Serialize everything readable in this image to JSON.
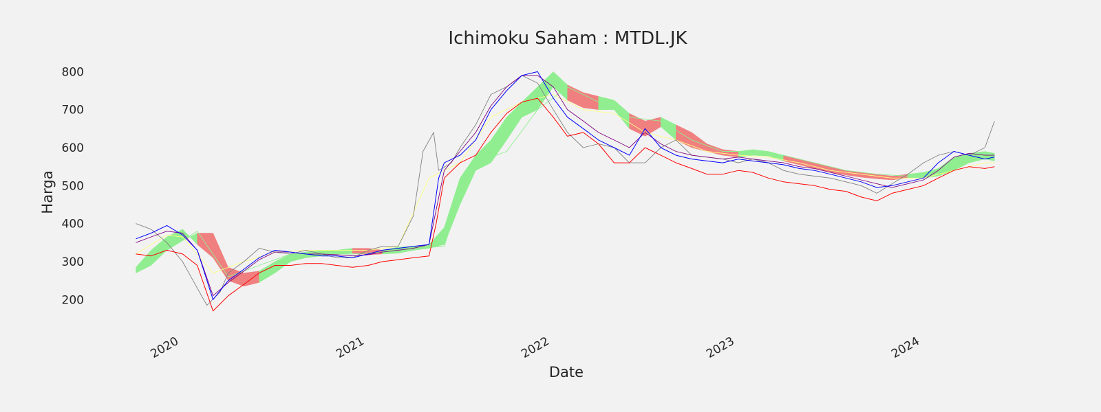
{
  "chart_data": {
    "type": "line",
    "title": "Ichimoku Saham : MTDL.JK",
    "xlabel": "Date",
    "ylabel": "Harga",
    "x_ticks": [
      "2020",
      "2021",
      "2022",
      "2023",
      "2024"
    ],
    "x_tick_dates": [
      "2020-01-01",
      "2021-01-01",
      "2022-01-01",
      "2023-01-01",
      "2024-01-01"
    ],
    "xlim": [
      "2019-10-15",
      "2024-07-10"
    ],
    "y_ticks": [
      200,
      300,
      400,
      500,
      600,
      700,
      800
    ],
    "ylim": [
      130,
      835
    ],
    "grid": false,
    "legend": "none",
    "colors": {
      "background": "#f2f2f2",
      "close": "#808080",
      "tenkan": "#0000ff",
      "kijun": "#800080",
      "chikou": "#ff0000",
      "senkou_a": "#90ee90",
      "senkou_b": "#ffff80",
      "cloud_bull": "#90ee90",
      "cloud_bear": "#f08080"
    },
    "series": [
      {
        "key": "close",
        "x": [
          "2019-11-01",
          "2019-12-01",
          "2020-01-01",
          "2020-02-01",
          "2020-03-01",
          "2020-03-20",
          "2020-04-15",
          "2020-05-01",
          "2020-06-01",
          "2020-07-01",
          "2020-08-01",
          "2020-09-01",
          "2020-10-01",
          "2020-11-01",
          "2020-12-01",
          "2021-01-01",
          "2021-02-01",
          "2021-03-01",
          "2021-04-01",
          "2021-05-01",
          "2021-05-20",
          "2021-06-10",
          "2021-06-20",
          "2021-07-15",
          "2021-08-01",
          "2021-09-01",
          "2021-10-01",
          "2021-11-01",
          "2021-12-01",
          "2022-01-01",
          "2022-02-01",
          "2022-03-01",
          "2022-04-01",
          "2022-05-01",
          "2022-06-01",
          "2022-07-01",
          "2022-08-01",
          "2022-09-01",
          "2022-10-01",
          "2022-11-01",
          "2022-12-01",
          "2023-01-01",
          "2023-02-01",
          "2023-03-01",
          "2023-04-01",
          "2023-05-01",
          "2023-06-01",
          "2023-07-01",
          "2023-08-01",
          "2023-09-01",
          "2023-10-01",
          "2023-11-01",
          "2023-12-01",
          "2024-01-01",
          "2024-02-01",
          "2024-03-01",
          "2024-04-01",
          "2024-05-01",
          "2024-06-01",
          "2024-06-20"
        ],
        "values": [
          400,
          385,
          350,
          300,
          230,
          185,
          220,
          270,
          300,
          335,
          325,
          320,
          330,
          320,
          310,
          310,
          330,
          340,
          340,
          420,
          590,
          640,
          540,
          560,
          600,
          660,
          740,
          760,
          790,
          770,
          700,
          640,
          600,
          610,
          600,
          560,
          560,
          600,
          620,
          580,
          575,
          570,
          560,
          570,
          560,
          540,
          530,
          525,
          520,
          510,
          500,
          480,
          505,
          530,
          560,
          580,
          590,
          580,
          600,
          670
        ]
      },
      {
        "key": "tenkan",
        "x": [
          "2019-11-01",
          "2019-12-01",
          "2020-01-01",
          "2020-02-01",
          "2020-03-01",
          "2020-04-01",
          "2020-05-01",
          "2020-06-01",
          "2020-07-01",
          "2020-08-01",
          "2020-09-01",
          "2020-10-01",
          "2020-11-01",
          "2020-12-01",
          "2021-01-01",
          "2021-02-01",
          "2021-03-01",
          "2021-04-01",
          "2021-05-01",
          "2021-06-01",
          "2021-06-20",
          "2021-07-01",
          "2021-08-01",
          "2021-09-01",
          "2021-10-01",
          "2021-11-01",
          "2021-12-01",
          "2022-01-01",
          "2022-02-01",
          "2022-03-01",
          "2022-04-01",
          "2022-05-01",
          "2022-06-01",
          "2022-07-01",
          "2022-08-01",
          "2022-09-01",
          "2022-10-01",
          "2022-11-01",
          "2022-12-01",
          "2023-01-01",
          "2023-02-01",
          "2023-03-01",
          "2023-04-01",
          "2023-05-01",
          "2023-06-01",
          "2023-07-01",
          "2023-08-01",
          "2023-09-01",
          "2023-10-01",
          "2023-11-01",
          "2023-12-01",
          "2024-01-01",
          "2024-02-01",
          "2024-03-01",
          "2024-04-01",
          "2024-05-01",
          "2024-06-01",
          "2024-06-20"
        ],
        "values": [
          360,
          375,
          395,
          370,
          330,
          200,
          250,
          280,
          310,
          330,
          325,
          320,
          315,
          315,
          310,
          320,
          330,
          335,
          340,
          345,
          520,
          560,
          580,
          620,
          700,
          750,
          790,
          800,
          730,
          680,
          650,
          620,
          600,
          580,
          650,
          600,
          580,
          570,
          565,
          560,
          570,
          565,
          560,
          555,
          545,
          540,
          530,
          520,
          510,
          495,
          500,
          510,
          520,
          560,
          590,
          580,
          570,
          575
        ]
      },
      {
        "key": "kijun",
        "x": [
          "2019-11-01",
          "2019-12-01",
          "2020-01-01",
          "2020-02-01",
          "2020-03-01",
          "2020-04-01",
          "2020-05-01",
          "2020-06-01",
          "2020-07-01",
          "2020-08-01",
          "2020-09-01",
          "2020-10-01",
          "2020-11-01",
          "2020-12-01",
          "2021-01-01",
          "2021-02-01",
          "2021-03-01",
          "2021-04-01",
          "2021-05-01",
          "2021-06-01",
          "2021-07-01",
          "2021-08-01",
          "2021-09-01",
          "2021-10-01",
          "2021-11-01",
          "2021-12-01",
          "2022-01-01",
          "2022-02-01",
          "2022-03-01",
          "2022-04-01",
          "2022-05-01",
          "2022-06-01",
          "2022-07-01",
          "2022-08-01",
          "2022-09-01",
          "2022-10-01",
          "2022-11-01",
          "2022-12-01",
          "2023-01-01",
          "2023-02-01",
          "2023-03-01",
          "2023-04-01",
          "2023-05-01",
          "2023-06-01",
          "2023-07-01",
          "2023-08-01",
          "2023-09-01",
          "2023-10-01",
          "2023-11-01",
          "2023-12-01",
          "2024-01-01",
          "2024-02-01",
          "2024-03-01",
          "2024-04-01",
          "2024-05-01",
          "2024-06-01",
          "2024-06-20"
        ],
        "values": [
          350,
          365,
          380,
          375,
          330,
          210,
          245,
          275,
          305,
          325,
          325,
          320,
          320,
          318,
          315,
          318,
          325,
          330,
          335,
          345,
          540,
          590,
          640,
          710,
          760,
          790,
          790,
          760,
          700,
          670,
          640,
          620,
          600,
          640,
          610,
          590,
          580,
          575,
          570,
          575,
          570,
          565,
          560,
          550,
          545,
          535,
          525,
          515,
          505,
          495,
          505,
          515,
          540,
          575,
          585,
          580,
          580
        ]
      },
      {
        "key": "chikou",
        "x": [
          "2019-11-01",
          "2019-12-01",
          "2020-01-01",
          "2020-02-01",
          "2020-03-01",
          "2020-04-01",
          "2020-05-01",
          "2020-06-01",
          "2020-07-01",
          "2020-08-01",
          "2020-09-01",
          "2020-10-01",
          "2020-11-01",
          "2020-12-01",
          "2021-01-01",
          "2021-02-01",
          "2021-03-01",
          "2021-04-01",
          "2021-05-01",
          "2021-06-01",
          "2021-06-15",
          "2021-07-01",
          "2021-08-01",
          "2021-09-01",
          "2021-10-01",
          "2021-11-01",
          "2021-12-01",
          "2022-01-01",
          "2022-02-01",
          "2022-03-01",
          "2022-04-01",
          "2022-05-01",
          "2022-06-01",
          "2022-07-01",
          "2022-08-01",
          "2022-09-01",
          "2022-10-01",
          "2022-11-01",
          "2022-12-01",
          "2023-01-01",
          "2023-02-01",
          "2023-03-01",
          "2023-04-01",
          "2023-05-01",
          "2023-06-01",
          "2023-07-01",
          "2023-08-01",
          "2023-09-01",
          "2023-10-01",
          "2023-11-01",
          "2023-12-01",
          "2024-01-01",
          "2024-02-01",
          "2024-03-01",
          "2024-04-01",
          "2024-05-01",
          "2024-06-01",
          "2024-06-20"
        ],
        "values": [
          320,
          315,
          330,
          320,
          290,
          170,
          210,
          240,
          270,
          290,
          290,
          295,
          295,
          290,
          285,
          290,
          300,
          305,
          310,
          315,
          400,
          520,
          560,
          580,
          640,
          690,
          720,
          730,
          680,
          630,
          640,
          610,
          560,
          560,
          600,
          580,
          560,
          545,
          530,
          530,
          540,
          535,
          520,
          510,
          505,
          500,
          490,
          485,
          470,
          460,
          480,
          490,
          500,
          520,
          540,
          550,
          545,
          550
        ]
      },
      {
        "key": "senkou_b",
        "x": [
          "2019-11-01",
          "2020-01-01",
          "2020-02-01",
          "2020-04-01",
          "2020-06-01",
          "2020-08-01",
          "2020-10-01",
          "2020-12-01",
          "2021-02-01",
          "2021-04-01",
          "2021-06-01",
          "2021-08-01",
          "2021-10-01",
          "2021-12-01",
          "2022-02-01",
          "2022-04-01",
          "2022-06-01",
          "2022-08-01",
          "2022-10-01",
          "2022-12-01",
          "2023-02-01",
          "2023-04-01",
          "2023-06-01",
          "2023-08-01",
          "2023-10-01",
          "2023-12-01",
          "2024-02-01",
          "2024-04-01",
          "2024-06-01",
          "2024-06-20"
        ],
        "values": [
          320,
          370,
          365,
          270,
          300,
          325,
          330,
          330,
          330,
          340,
          520,
          560,
          680,
          720,
          740,
          700,
          690,
          640,
          620,
          590,
          580,
          575,
          560,
          540,
          530,
          520,
          520,
          540,
          560,
          560
        ]
      },
      {
        "key": "senkou_a",
        "x": [
          "2019-11-01",
          "2020-01-01",
          "2020-03-01",
          "2020-05-01",
          "2020-07-01",
          "2020-09-01",
          "2020-11-01",
          "2021-01-01",
          "2021-03-01",
          "2021-05-01",
          "2021-07-01",
          "2021-08-01",
          "2021-09-01",
          "2021-11-01",
          "2022-01-01",
          "2022-03-01",
          "2022-05-01",
          "2022-07-01",
          "2022-09-01",
          "2022-11-01",
          "2023-01-01",
          "2023-03-01",
          "2023-05-01",
          "2023-07-01",
          "2023-09-01",
          "2023-11-01",
          "2024-01-01",
          "2024-03-01",
          "2024-05-01",
          "2024-06-20"
        ],
        "values": [
          280,
          330,
          380,
          260,
          290,
          320,
          320,
          320,
          325,
          335,
          340,
          470,
          560,
          590,
          700,
          760,
          720,
          680,
          670,
          620,
          590,
          590,
          580,
          560,
          540,
          530,
          525,
          540,
          580,
          580
        ]
      }
    ],
    "cloud": [
      {
        "x": "2019-11-01",
        "a": 270,
        "b": 285,
        "state": "bull"
      },
      {
        "x": "2019-12-01",
        "a": 290,
        "b": 330,
        "state": "bull"
      },
      {
        "x": "2020-01-01",
        "a": 330,
        "b": 365,
        "state": "bull"
      },
      {
        "x": "2020-02-01",
        "a": 355,
        "b": 385,
        "state": "bull"
      },
      {
        "x": "2020-03-01",
        "a": 375,
        "b": 345,
        "state": "bear"
      },
      {
        "x": "2020-04-01",
        "a": 375,
        "b": 310,
        "state": "bear"
      },
      {
        "x": "2020-05-01",
        "a": 285,
        "b": 250,
        "state": "bear"
      },
      {
        "x": "2020-06-01",
        "a": 270,
        "b": 235,
        "state": "bear"
      },
      {
        "x": "2020-07-01",
        "a": 275,
        "b": 245,
        "state": "bull"
      },
      {
        "x": "2020-08-01",
        "a": 300,
        "b": 270,
        "state": "bull"
      },
      {
        "x": "2020-09-01",
        "a": 320,
        "b": 300,
        "state": "bull"
      },
      {
        "x": "2020-10-01",
        "a": 325,
        "b": 310,
        "state": "bull"
      },
      {
        "x": "2020-11-01",
        "a": 330,
        "b": 315,
        "state": "bull"
      },
      {
        "x": "2020-12-01",
        "a": 330,
        "b": 320,
        "state": "bull"
      },
      {
        "x": "2021-01-01",
        "a": 335,
        "b": 322,
        "state": "bear"
      },
      {
        "x": "2021-02-01",
        "a": 335,
        "b": 318,
        "state": "bear"
      },
      {
        "x": "2021-03-01",
        "a": 330,
        "b": 320,
        "state": "bull"
      },
      {
        "x": "2021-04-01",
        "a": 338,
        "b": 322,
        "state": "bull"
      },
      {
        "x": "2021-05-01",
        "a": 340,
        "b": 330,
        "state": "bull"
      },
      {
        "x": "2021-06-01",
        "a": 345,
        "b": 335,
        "state": "bull"
      },
      {
        "x": "2021-07-01",
        "a": 390,
        "b": 345,
        "state": "bull"
      },
      {
        "x": "2021-08-01",
        "a": 520,
        "b": 450,
        "state": "bull"
      },
      {
        "x": "2021-09-01",
        "a": 580,
        "b": 540,
        "state": "bull"
      },
      {
        "x": "2021-10-01",
        "a": 620,
        "b": 560,
        "state": "bull"
      },
      {
        "x": "2021-11-01",
        "a": 680,
        "b": 620,
        "state": "bull"
      },
      {
        "x": "2021-12-01",
        "a": 720,
        "b": 680,
        "state": "bull"
      },
      {
        "x": "2022-01-01",
        "a": 760,
        "b": 700,
        "state": "bull"
      },
      {
        "x": "2022-02-01",
        "a": 800,
        "b": 760,
        "state": "bull"
      },
      {
        "x": "2022-03-01",
        "a": 765,
        "b": 725,
        "state": "bear"
      },
      {
        "x": "2022-04-01",
        "a": 745,
        "b": 705,
        "state": "bear"
      },
      {
        "x": "2022-05-01",
        "a": 735,
        "b": 700,
        "state": "bull"
      },
      {
        "x": "2022-06-01",
        "a": 725,
        "b": 700,
        "state": "bull"
      },
      {
        "x": "2022-07-01",
        "a": 690,
        "b": 650,
        "state": "bear"
      },
      {
        "x": "2022-08-01",
        "a": 670,
        "b": 630,
        "state": "bear"
      },
      {
        "x": "2022-09-01",
        "a": 680,
        "b": 655,
        "state": "bull"
      },
      {
        "x": "2022-10-01",
        "a": 660,
        "b": 620,
        "state": "bear"
      },
      {
        "x": "2022-11-01",
        "a": 640,
        "b": 600,
        "state": "bear"
      },
      {
        "x": "2022-12-01",
        "a": 610,
        "b": 590,
        "state": "bear"
      },
      {
        "x": "2023-01-01",
        "a": 595,
        "b": 580,
        "state": "bear"
      },
      {
        "x": "2023-02-01",
        "a": 590,
        "b": 575,
        "state": "bull"
      },
      {
        "x": "2023-03-01",
        "a": 595,
        "b": 580,
        "state": "bull"
      },
      {
        "x": "2023-04-01",
        "a": 590,
        "b": 578,
        "state": "bull"
      },
      {
        "x": "2023-05-01",
        "a": 580,
        "b": 565,
        "state": "bear"
      },
      {
        "x": "2023-06-01",
        "a": 570,
        "b": 555,
        "state": "bear"
      },
      {
        "x": "2023-07-01",
        "a": 560,
        "b": 545,
        "state": "bear"
      },
      {
        "x": "2023-08-01",
        "a": 550,
        "b": 535,
        "state": "bear"
      },
      {
        "x": "2023-09-01",
        "a": 540,
        "b": 528,
        "state": "bear"
      },
      {
        "x": "2023-10-01",
        "a": 535,
        "b": 522,
        "state": "bear"
      },
      {
        "x": "2023-11-01",
        "a": 530,
        "b": 518,
        "state": "bear"
      },
      {
        "x": "2023-12-01",
        "a": 525,
        "b": 515,
        "state": "bear"
      },
      {
        "x": "2024-01-01",
        "a": 530,
        "b": 520,
        "state": "bull"
      },
      {
        "x": "2024-02-01",
        "a": 535,
        "b": 520,
        "state": "bull"
      },
      {
        "x": "2024-03-01",
        "a": 545,
        "b": 525,
        "state": "bull"
      },
      {
        "x": "2024-04-01",
        "a": 575,
        "b": 540,
        "state": "bull"
      },
      {
        "x": "2024-05-01",
        "a": 585,
        "b": 560,
        "state": "bull"
      },
      {
        "x": "2024-06-01",
        "a": 590,
        "b": 570,
        "state": "bull"
      },
      {
        "x": "2024-06-20",
        "a": 585,
        "b": 565,
        "state": "bull"
      }
    ]
  }
}
